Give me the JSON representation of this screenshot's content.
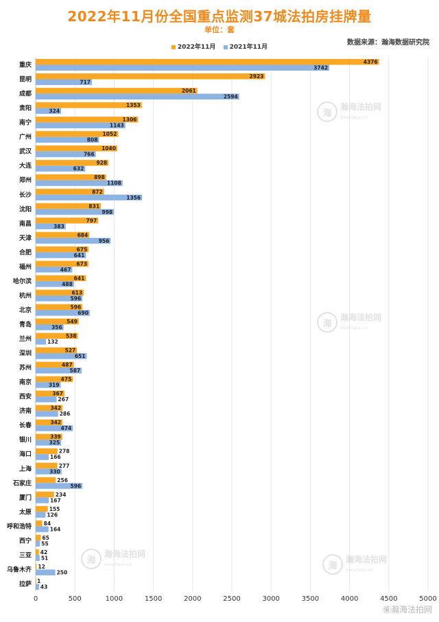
{
  "header": {
    "title": "2022年11月份全国重点监测37城法拍房挂牌量",
    "unit": "单位：套",
    "source": "数据来源：瀚海数据研究院"
  },
  "watermark": {
    "brand": "瀚海法拍网",
    "site": "www.fapai.cn",
    "corner": "㊝瀚海法拍网"
  },
  "colors": {
    "series_2022": "#f9a825",
    "series_2021": "#8eb4e3"
  },
  "chart_data": {
    "type": "bar",
    "orientation": "horizontal",
    "title": "2022年11月份全国重点监测37城法拍房挂牌量",
    "categories": [
      "重庆",
      "昆明",
      "成都",
      "贵阳",
      "南宁",
      "广州",
      "武汉",
      "大连",
      "郑州",
      "长沙",
      "沈阳",
      "南昌",
      "天津",
      "合肥",
      "福州",
      "哈尔滨",
      "杭州",
      "北京",
      "青岛",
      "兰州",
      "深圳",
      "苏州",
      "南京",
      "西安",
      "济南",
      "长春",
      "银川",
      "海口",
      "上海",
      "石家庄",
      "厦门",
      "太原",
      "呼和浩特",
      "西宁",
      "三亚",
      "乌鲁木齐",
      "拉萨"
    ],
    "series": [
      {
        "name": "2022年11月",
        "values": [
          4376,
          2923,
          2061,
          1353,
          1306,
          1052,
          1040,
          928,
          898,
          872,
          831,
          797,
          684,
          675,
          673,
          641,
          613,
          596,
          549,
          538,
          527,
          487,
          475,
          367,
          342,
          342,
          339,
          278,
          277,
          256,
          234,
          155,
          84,
          65,
          42,
          12,
          1
        ]
      },
      {
        "name": "2021年11月",
        "values": [
          3742,
          717,
          2594,
          324,
          1143,
          808,
          766,
          632,
          1108,
          1356,
          998,
          383,
          956,
          641,
          467,
          488,
          596,
          690,
          356,
          132,
          651,
          587,
          319,
          267,
          286,
          474,
          325,
          166,
          330,
          596,
          167,
          126,
          164,
          55,
          51,
          250,
          43
        ]
      }
    ],
    "xlim": [
      0,
      5000
    ],
    "xticks": [
      0,
      500,
      1000,
      1500,
      2000,
      2500,
      3000,
      3500,
      4000,
      4500,
      5000
    ],
    "grid": true,
    "legend_position": "top-center",
    "data_labels": true
  }
}
